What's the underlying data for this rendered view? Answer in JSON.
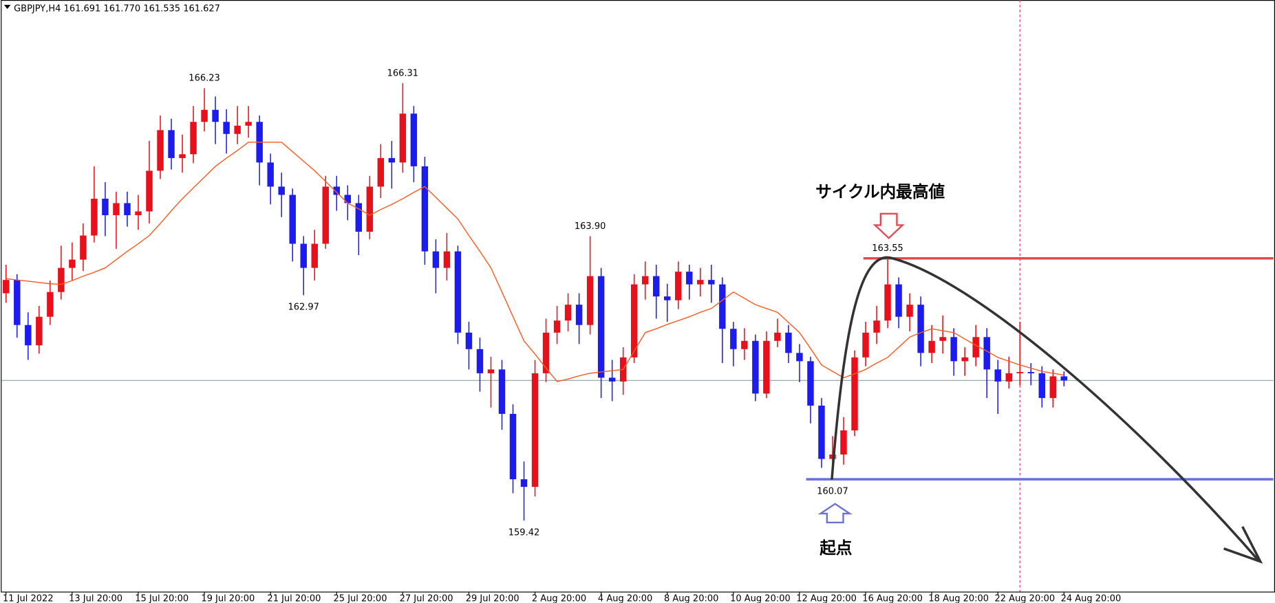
{
  "chart_data": {
    "type": "candlestick",
    "title": "GBPJPY,H4  161.691 161.770 161.535 161.627",
    "open": [
      163.0,
      163.21,
      162.5,
      162.18,
      162.63,
      163.02,
      163.4,
      163.53,
      163.91,
      164.49,
      164.23,
      164.42,
      164.23,
      164.29,
      164.93,
      165.57,
      165.13,
      165.19,
      165.7,
      165.89,
      165.7,
      165.51,
      165.64,
      165.7,
      165.06,
      164.68,
      164.55,
      163.78,
      163.4,
      163.78,
      164.68,
      164.55,
      164.42,
      163.97,
      164.68,
      165.13,
      165.06,
      165.83,
      165.0,
      163.66,
      163.4,
      163.66,
      162.38,
      162.12,
      161.74,
      161.8,
      161.1,
      160.07,
      159.95,
      161.74,
      162.38,
      162.57,
      162.82,
      162.5,
      163.27,
      161.67,
      161.61,
      161.99,
      163.14,
      163.27,
      162.95,
      162.89,
      163.34,
      163.14,
      163.21,
      163.14,
      162.44,
      162.12,
      162.25,
      161.42,
      162.25,
      162.38,
      162.06,
      161.93,
      161.23,
      160.39,
      160.46,
      160.84,
      161.99,
      162.38,
      162.57,
      163.14,
      162.63,
      162.82,
      162.06,
      162.25,
      162.31,
      161.93,
      161.99,
      162.31,
      161.8,
      161.61,
      161.74,
      161.76,
      161.74,
      161.35,
      161.691
    ],
    "high": [
      163.45,
      163.3,
      162.7,
      162.8,
      163.2,
      163.75,
      163.8,
      164.1,
      165.0,
      164.75,
      164.6,
      164.6,
      164.55,
      165.4,
      165.8,
      165.75,
      165.5,
      165.95,
      166.23,
      166.1,
      165.9,
      165.95,
      165.95,
      165.8,
      165.2,
      164.9,
      164.65,
      163.9,
      164.0,
      164.85,
      164.85,
      164.7,
      164.55,
      164.85,
      165.35,
      165.4,
      166.31,
      165.95,
      165.15,
      163.85,
      163.95,
      163.75,
      162.55,
      162.3,
      162.0,
      161.95,
      161.25,
      160.35,
      161.95,
      162.6,
      162.8,
      163.0,
      163.0,
      163.9,
      163.4,
      161.95,
      162.15,
      163.3,
      163.5,
      163.45,
      163.15,
      163.5,
      163.45,
      163.4,
      163.45,
      163.25,
      162.55,
      162.45,
      162.35,
      162.4,
      162.6,
      162.5,
      162.2,
      162.0,
      161.35,
      160.75,
      161.05,
      162.1,
      162.55,
      162.8,
      163.55,
      163.25,
      163.0,
      162.95,
      162.5,
      162.65,
      162.45,
      162.15,
      162.5,
      162.45,
      161.95,
      162.0,
      162.55,
      161.9,
      161.85,
      161.8,
      161.77
    ],
    "low": [
      162.85,
      162.3,
      161.95,
      162.05,
      162.5,
      162.9,
      163.2,
      163.35,
      163.8,
      163.9,
      163.7,
      164.05,
      164.0,
      164.1,
      164.8,
      164.95,
      164.9,
      165.05,
      165.55,
      165.35,
      165.2,
      165.35,
      165.45,
      164.7,
      164.4,
      164.2,
      163.5,
      162.97,
      163.2,
      163.7,
      164.3,
      164.15,
      163.6,
      163.85,
      164.5,
      164.65,
      164.9,
      164.75,
      163.45,
      163.0,
      163.2,
      162.2,
      161.8,
      161.45,
      161.2,
      160.85,
      159.85,
      159.42,
      159.8,
      161.6,
      162.2,
      162.4,
      162.2,
      162.35,
      161.35,
      161.3,
      161.4,
      161.9,
      162.9,
      162.6,
      162.55,
      162.75,
      162.9,
      162.95,
      162.85,
      161.9,
      161.85,
      161.95,
      161.3,
      161.35,
      162.15,
      161.9,
      161.6,
      160.95,
      160.25,
      160.07,
      160.3,
      160.75,
      161.85,
      162.2,
      162.45,
      162.45,
      162.4,
      161.85,
      161.9,
      162.05,
      161.7,
      161.7,
      161.85,
      161.35,
      161.1,
      161.5,
      161.55,
      161.55,
      161.2,
      161.2,
      161.535
    ],
    "close": [
      163.21,
      162.5,
      162.18,
      162.63,
      163.02,
      163.4,
      163.53,
      163.91,
      164.49,
      164.23,
      164.42,
      164.23,
      164.29,
      164.93,
      165.57,
      165.13,
      165.19,
      165.7,
      165.89,
      165.7,
      165.51,
      165.64,
      165.7,
      165.06,
      164.68,
      164.55,
      163.78,
      163.4,
      163.78,
      164.68,
      164.55,
      164.42,
      163.97,
      164.68,
      165.13,
      165.06,
      165.83,
      165.0,
      163.66,
      163.4,
      163.66,
      162.38,
      162.12,
      161.74,
      161.8,
      161.1,
      160.07,
      159.95,
      161.74,
      162.38,
      162.57,
      162.82,
      162.5,
      163.27,
      161.67,
      161.61,
      161.99,
      163.14,
      163.27,
      162.95,
      162.89,
      163.34,
      163.14,
      163.21,
      163.14,
      162.44,
      162.12,
      162.25,
      161.42,
      162.25,
      162.38,
      162.06,
      161.93,
      161.23,
      160.39,
      160.46,
      160.84,
      161.99,
      162.38,
      162.57,
      163.14,
      162.63,
      162.82,
      162.06,
      162.25,
      162.31,
      161.93,
      161.99,
      162.31,
      161.8,
      161.61,
      161.74,
      161.76,
      161.74,
      161.35,
      161.691,
      161.627
    ],
    "ma": [
      163.23,
      163.21,
      163.19,
      163.17,
      163.15,
      163.14,
      163.2,
      163.27,
      163.33,
      163.4,
      163.53,
      163.66,
      163.78,
      163.91,
      164.1,
      164.3,
      164.49,
      164.66,
      164.83,
      165.0,
      165.13,
      165.25,
      165.38,
      165.38,
      165.38,
      165.38,
      165.23,
      165.08,
      164.93,
      164.76,
      164.59,
      164.42,
      164.33,
      164.23,
      164.32,
      164.4,
      164.49,
      164.59,
      164.68,
      164.51,
      164.34,
      164.17,
      163.91,
      163.66,
      163.4,
      163.02,
      162.63,
      162.25,
      162.04,
      161.82,
      161.61,
      161.65,
      161.7,
      161.74,
      161.76,
      161.78,
      161.8,
      162.09,
      162.38,
      162.44,
      162.51,
      162.57,
      162.63,
      162.7,
      162.76,
      162.89,
      163.02,
      162.92,
      162.82,
      162.76,
      162.7,
      162.54,
      162.38,
      162.13,
      161.87,
      161.77,
      161.67,
      161.73,
      161.8,
      161.9,
      161.99,
      162.15,
      162.31,
      162.38,
      162.44,
      162.41,
      162.38,
      162.28,
      162.18,
      162.09,
      161.99,
      161.93,
      161.87,
      161.82,
      161.77,
      161.74,
      161.71
    ],
    "colors": {
      "up": "#e8101a",
      "down": "#1c1cf0",
      "ma": "#ff5a1f",
      "price_line": "#8aa0a0",
      "vline": "#e23a5a"
    },
    "ylim": [
      158.3,
      167.62
    ],
    "xlim": [
      -0.4,
      115
    ],
    "xticks": [
      {
        "value": 0,
        "label": "11 Jul 2022"
      },
      {
        "value": 6,
        "label": "13 Jul 20:00"
      },
      {
        "value": 12,
        "label": "15 Jul 20:00"
      },
      {
        "value": 18,
        "label": "19 Jul 20:00"
      },
      {
        "value": 24,
        "label": "21 Jul 20:00"
      },
      {
        "value": 30,
        "label": "25 Jul 20:00"
      },
      {
        "value": 36,
        "label": "27 Jul 20:00"
      },
      {
        "value": 42,
        "label": "29 Jul 20:00"
      },
      {
        "value": 48,
        "label": "2 Aug 20:00"
      },
      {
        "value": 54,
        "label": "4 Aug 20:00"
      },
      {
        "value": 60,
        "label": "8 Aug 20:00"
      },
      {
        "value": 66,
        "label": "10 Aug 20:00"
      },
      {
        "value": 72,
        "label": "12 Aug 20:00"
      },
      {
        "value": 78,
        "label": "16 Aug 20:00"
      },
      {
        "value": 84,
        "label": "18 Aug 20:00"
      },
      {
        "value": 90,
        "label": "22 Aug 20:00"
      },
      {
        "value": 96,
        "label": "24 Aug 20:00"
      }
    ],
    "price_labels": [
      {
        "index": 18,
        "value": 166.23
      },
      {
        "index": 36,
        "value": 166.31
      },
      {
        "index": 27,
        "value": 162.97
      },
      {
        "index": 53,
        "value": 163.9,
        "label": "163.90"
      },
      {
        "index": 80,
        "value": 163.55
      },
      {
        "index": 47,
        "value": 159.42
      },
      {
        "index": 75,
        "value": 160.07
      }
    ],
    "price_line": 161.627,
    "vline": 92,
    "hlines": [
      {
        "value": 163.55,
        "from": 77.8,
        "color": "#e8474f"
      },
      {
        "value": 160.07,
        "from": 72.6,
        "color": "#6a72d8"
      }
    ],
    "annotations": [
      {
        "text": "サイクル内最高値",
        "color": "#e8202a"
      },
      {
        "text": "起点",
        "color": "#4a56cc"
      }
    ]
  }
}
